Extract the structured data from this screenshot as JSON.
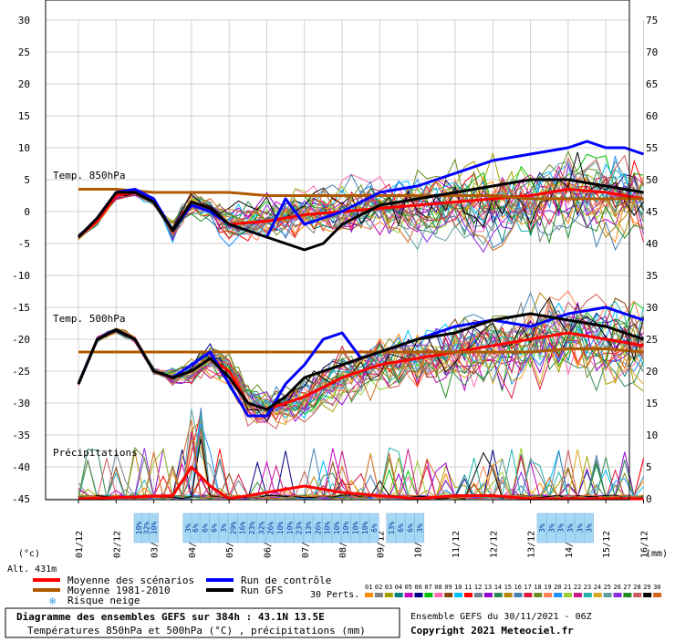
{
  "chart_data": {
    "type": "line",
    "left_axis_ticks": [
      30,
      25,
      20,
      15,
      10,
      5,
      0,
      -5,
      -10,
      -15,
      -20,
      -25,
      -30,
      -35,
      -40,
      -45
    ],
    "right_axis_ticks": [
      75,
      70,
      65,
      60,
      55,
      50,
      45,
      40,
      35,
      30,
      25,
      20,
      15,
      10,
      5,
      0
    ],
    "left_unit": "(°c)",
    "right_unit": "(mm)",
    "altitude": "Alt. 431m",
    "x_labels": [
      "01/12",
      "02/12",
      "03/12",
      "04/12",
      "05/12",
      "06/12",
      "07/12",
      "08/12",
      "09/12",
      "10/12",
      "11/12",
      "12/12",
      "13/12",
      "14/12",
      "15/12",
      "16/12"
    ],
    "panels": {
      "t850": "Temp. 850hPa",
      "t500": "Temp. 500hPa",
      "precip": "Précipitations"
    },
    "series": [
      {
        "name": "Moyenne des scénarios",
        "color": "#ff0000",
        "t850": [
          [
            0,
            -4
          ],
          [
            0.5,
            -1.5
          ],
          [
            1,
            2.5
          ],
          [
            1.5,
            3
          ],
          [
            2,
            1.5
          ],
          [
            2.5,
            -3
          ],
          [
            3,
            1.5
          ],
          [
            3.5,
            0.5
          ],
          [
            4,
            -2
          ],
          [
            5,
            -1.5
          ],
          [
            6,
            -0.5
          ],
          [
            7,
            0
          ],
          [
            8,
            0.5
          ],
          [
            9,
            1
          ],
          [
            10,
            1.5
          ],
          [
            11,
            2
          ],
          [
            12,
            2.5
          ],
          [
            13,
            3.5
          ],
          [
            14,
            3
          ],
          [
            15,
            2
          ]
        ],
        "t500": [
          [
            0,
            -27
          ],
          [
            0.5,
            -20
          ],
          [
            1,
            -18.5
          ],
          [
            1.5,
            -20
          ],
          [
            2,
            -25
          ],
          [
            2.5,
            -26
          ],
          [
            3,
            -25
          ],
          [
            3.5,
            -23
          ],
          [
            4,
            -25
          ],
          [
            4.5,
            -30
          ],
          [
            5,
            -31
          ],
          [
            6,
            -29
          ],
          [
            7,
            -26
          ],
          [
            8,
            -24
          ],
          [
            9,
            -23
          ],
          [
            10,
            -22
          ],
          [
            11,
            -21
          ],
          [
            12,
            -20
          ],
          [
            13,
            -19
          ],
          [
            14,
            -20
          ],
          [
            15,
            -21
          ]
        ],
        "precip": [
          [
            0,
            0
          ],
          [
            2.5,
            0.5
          ],
          [
            3,
            5
          ],
          [
            3.5,
            2
          ],
          [
            4,
            0
          ],
          [
            5,
            1
          ],
          [
            6,
            2
          ],
          [
            7,
            1
          ],
          [
            8,
            0.5
          ],
          [
            9,
            0
          ],
          [
            10,
            0.5
          ],
          [
            11,
            0.5
          ],
          [
            12,
            0
          ],
          [
            15,
            0
          ]
        ]
      },
      {
        "name": "Moyenne 1981-2010",
        "color": "#b05a00",
        "t850": [
          [
            0,
            3.5
          ],
          [
            1,
            3.5
          ],
          [
            2,
            3
          ],
          [
            3,
            3
          ],
          [
            4,
            3
          ],
          [
            5,
            2.5
          ],
          [
            6,
            2.5
          ],
          [
            7,
            2.5
          ],
          [
            8,
            2.5
          ],
          [
            9,
            2.5
          ],
          [
            10,
            2.5
          ],
          [
            11,
            2.5
          ],
          [
            12,
            2
          ],
          [
            13,
            2
          ],
          [
            14,
            2
          ],
          [
            15,
            2
          ]
        ],
        "t500": [
          [
            0,
            -22
          ],
          [
            1,
            -22
          ],
          [
            2,
            -22
          ],
          [
            3,
            -22
          ],
          [
            4,
            -22
          ],
          [
            5,
            -22
          ],
          [
            6,
            -22
          ],
          [
            7,
            -22
          ],
          [
            8,
            -22
          ],
          [
            9,
            -22
          ],
          [
            10,
            -22
          ],
          [
            11,
            -22
          ],
          [
            12,
            -22
          ],
          [
            13,
            -21.5
          ],
          [
            14,
            -21.5
          ],
          [
            15,
            -22
          ]
        ]
      },
      {
        "name": "Run de contrôle",
        "color": "#0000ff",
        "t850": [
          [
            0,
            -4
          ],
          [
            0.5,
            -1
          ],
          [
            1,
            3
          ],
          [
            1.5,
            3.5
          ],
          [
            2,
            2
          ],
          [
            2.5,
            -3
          ],
          [
            3,
            1
          ],
          [
            3.5,
            0
          ],
          [
            4,
            -2
          ],
          [
            4.5,
            -3
          ],
          [
            5,
            -4
          ],
          [
            5.5,
            2
          ],
          [
            6,
            -2
          ],
          [
            7,
            0
          ],
          [
            8,
            3
          ],
          [
            9,
            4
          ],
          [
            10,
            6
          ],
          [
            11,
            8
          ],
          [
            12,
            9
          ],
          [
            13,
            10
          ],
          [
            13.5,
            11
          ],
          [
            14,
            10
          ],
          [
            14.5,
            10
          ],
          [
            15,
            9
          ]
        ],
        "t500": [
          [
            0,
            -27
          ],
          [
            0.5,
            -20
          ],
          [
            1,
            -18.5
          ],
          [
            1.5,
            -20
          ],
          [
            2,
            -25
          ],
          [
            2.5,
            -26
          ],
          [
            3,
            -24
          ],
          [
            3.5,
            -22
          ],
          [
            4,
            -27
          ],
          [
            4.5,
            -32
          ],
          [
            5,
            -32
          ],
          [
            5.5,
            -27
          ],
          [
            6,
            -24
          ],
          [
            6.5,
            -20
          ],
          [
            7,
            -19
          ],
          [
            7.5,
            -23
          ],
          [
            8,
            -22
          ],
          [
            9,
            -20
          ],
          [
            10,
            -18
          ],
          [
            11,
            -17
          ],
          [
            12,
            -18
          ],
          [
            13,
            -16
          ],
          [
            14,
            -15
          ],
          [
            15,
            -17
          ]
        ]
      },
      {
        "name": "Run GFS",
        "color": "#000000",
        "t850": [
          [
            0,
            -4
          ],
          [
            0.5,
            -1
          ],
          [
            1,
            3
          ],
          [
            1.5,
            3
          ],
          [
            2,
            1.5
          ],
          [
            2.5,
            -3
          ],
          [
            3,
            1.5
          ],
          [
            3.5,
            0.5
          ],
          [
            4,
            -2
          ],
          [
            4.5,
            -3
          ],
          [
            5,
            -4
          ],
          [
            5.5,
            -5
          ],
          [
            6,
            -6
          ],
          [
            6.5,
            -5
          ],
          [
            7,
            -2
          ],
          [
            8,
            1
          ],
          [
            9,
            2
          ],
          [
            10,
            3
          ],
          [
            11,
            4
          ],
          [
            12,
            5
          ],
          [
            13,
            5
          ],
          [
            14,
            4
          ],
          [
            15,
            3
          ]
        ],
        "t500": [
          [
            0,
            -27
          ],
          [
            0.5,
            -20
          ],
          [
            1,
            -18.5
          ],
          [
            1.5,
            -20
          ],
          [
            2,
            -25
          ],
          [
            2.5,
            -26
          ],
          [
            3,
            -25
          ],
          [
            3.5,
            -23
          ],
          [
            4,
            -26
          ],
          [
            4.5,
            -30
          ],
          [
            5,
            -31
          ],
          [
            5.5,
            -29
          ],
          [
            6,
            -26
          ],
          [
            7,
            -24
          ],
          [
            8,
            -22
          ],
          [
            9,
            -20
          ],
          [
            10,
            -19
          ],
          [
            11,
            -17
          ],
          [
            12,
            -16
          ],
          [
            13,
            -17
          ],
          [
            14,
            -18
          ],
          [
            15,
            -20
          ]
        ]
      }
    ],
    "snow_risk": {
      "labels": [
        "10%",
        "32%",
        "10%",
        "3%",
        "6%",
        "6%",
        "6%",
        "3%",
        "29%",
        "16%",
        "23%",
        "32%",
        "26%",
        "10%",
        "10%",
        "23%",
        "13%",
        "26%",
        "10%",
        "10%",
        "10%",
        "10%",
        "10%",
        "6%",
        "13%",
        "6%",
        "6%",
        "3%",
        "3%",
        "3%",
        "3%",
        "3%",
        "3%",
        "3%"
      ],
      "x": [
        1.6,
        1.8,
        2.0,
        2.9,
        3.1,
        3.35,
        3.6,
        3.85,
        4.1,
        4.35,
        4.6,
        4.85,
        5.1,
        5.35,
        5.6,
        5.85,
        6.1,
        6.35,
        6.6,
        6.85,
        7.1,
        7.35,
        7.6,
        7.85,
        8.3,
        8.55,
        8.8,
        9.05,
        12.3,
        12.55,
        12.8,
        13.05,
        13.3,
        13.55
      ]
    },
    "legend": {
      "mean": "Moyenne des scénarios",
      "climato": "Moyenne 1981-2010",
      "control": "Run de contrôle",
      "gfs": "Run GFS",
      "snow": "Risque neige",
      "perts_label": "30 Perts.",
      "perts": [
        "01",
        "02",
        "03",
        "04",
        "05",
        "06",
        "07",
        "08",
        "09",
        "10",
        "11",
        "12",
        "13",
        "14",
        "15",
        "16",
        "17",
        "18",
        "19",
        "20",
        "21",
        "22",
        "23",
        "24",
        "25",
        "26",
        "27",
        "28",
        "29",
        "30"
      ],
      "pert_colors": [
        "#ff8c00",
        "#808080",
        "#a0a000",
        "#008080",
        "#c000c0",
        "#000080",
        "#00c000",
        "#ff69b4",
        "#8b4513",
        "#00bfff",
        "#ff0000",
        "#708090",
        "#9400d3",
        "#2e8b57",
        "#b8860b",
        "#4682b4",
        "#dc143c",
        "#6b8e23",
        "#ff7f50",
        "#1e90ff",
        "#9acd32",
        "#c71585",
        "#20b2aa",
        "#daa520",
        "#5f9ea0",
        "#8a2be2",
        "#228b22",
        "#cd5c5c",
        "#000000",
        "#d2691e"
      ]
    }
  },
  "footer": {
    "title": "Diagramme des ensembles GEFS sur 384h : 43.1N 13.5E",
    "subtitle": "Températures 850hPa et 500hPa (°C) , précipitations (mm)",
    "run": "Ensemble GEFS du 30/11/2021 - 06Z",
    "copyright": "Copyright 2021 Meteociel.fr"
  }
}
